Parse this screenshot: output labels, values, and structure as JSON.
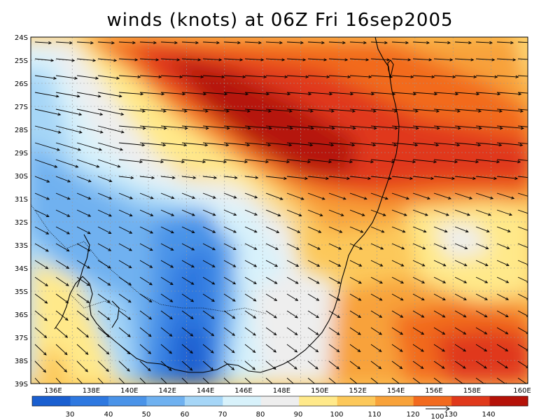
{
  "title": "winds (knots) at 06Z Fri 16sep2005",
  "map": {
    "lat_labels": [
      "24S",
      "25S",
      "26S",
      "27S",
      "28S",
      "29S",
      "30S",
      "31S",
      "32S",
      "33S",
      "34S",
      "35S",
      "36S",
      "37S",
      "38S",
      "39S"
    ],
    "lon_labels": [
      "136E",
      "138E",
      "140E",
      "142E",
      "144E",
      "146E",
      "148E",
      "150E",
      "152E",
      "154E",
      "156E",
      "158E",
      "160E"
    ]
  },
  "colorbar": {
    "labels": [
      "30",
      "40",
      "50",
      "60",
      "70",
      "80",
      "90",
      "100",
      "110",
      "120",
      "130",
      "140"
    ],
    "colors": [
      "#1a5fd0",
      "#2e78e0",
      "#4a93e8",
      "#6fb1f0",
      "#a6d6f7",
      "#d8f2fb",
      "#eeeeee",
      "#ffe98a",
      "#fcc85a",
      "#f8a23a",
      "#f26a1e",
      "#e0391b",
      "#b51208"
    ]
  },
  "reference_vector": {
    "label": "100"
  }
}
